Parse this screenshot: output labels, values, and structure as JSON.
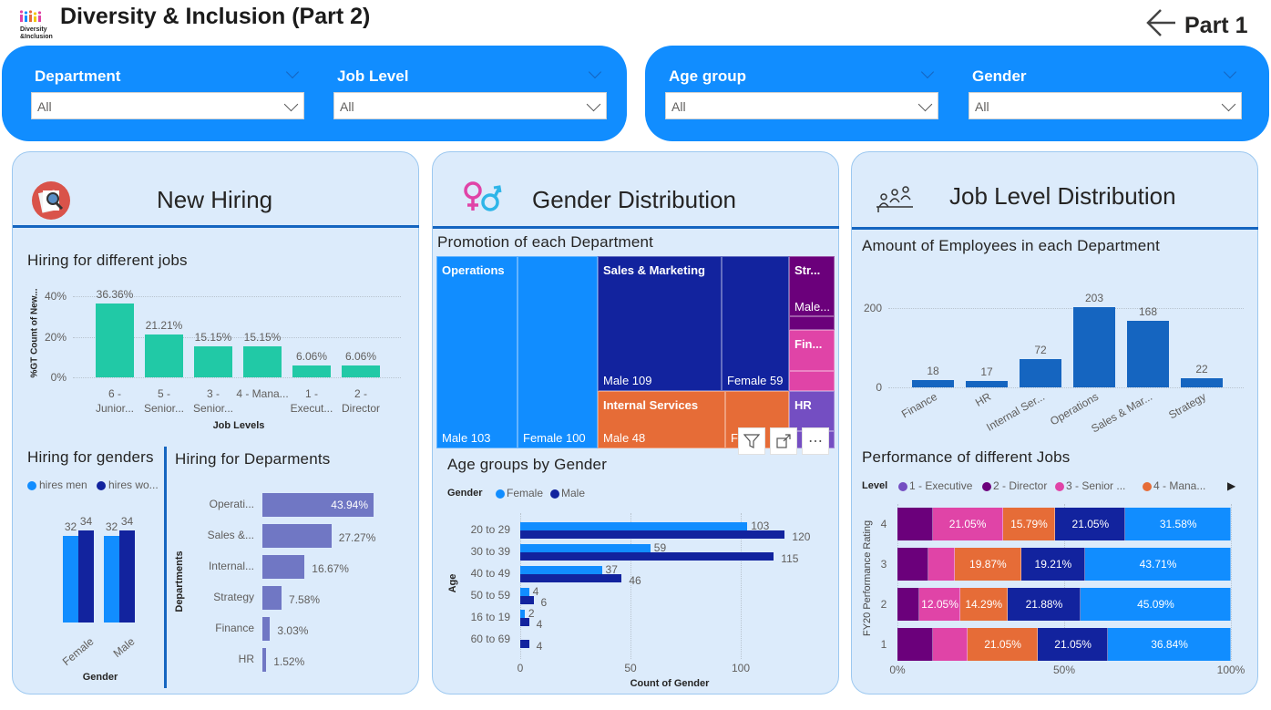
{
  "header": {
    "title": "Diversity & Inclusion (Part 2)",
    "logo_text": "Diversity & Inclusion",
    "back_label": "Part 1"
  },
  "filters": [
    {
      "label": "Department",
      "value": "All"
    },
    {
      "label": "Job Level",
      "value": "All"
    },
    {
      "label": "Age group",
      "value": "All"
    },
    {
      "label": "Gender",
      "value": "All"
    }
  ],
  "panels": {
    "hiring": {
      "title": "New Hiring"
    },
    "gender": {
      "title": "Gender Distribution"
    },
    "job": {
      "title": "Job Level Distribution"
    }
  },
  "colors": {
    "accent": "#118DFF",
    "panel_bg": "#DCEBFB",
    "teal": "#21C9A6",
    "lavender": "#7077C4",
    "light_blue": "#118DFF",
    "navy": "#12239E",
    "orange": "#E66C37",
    "purple": "#6B007B",
    "pink": "#E044A7",
    "violet": "#744EC2",
    "bar_blue": "#1565C0"
  },
  "chart_data": [
    {
      "type": "bar",
      "title": "Hiring for different jobs",
      "categories": [
        "6 - Junior...",
        "5 - Senior...",
        "3 - Senior...",
        "4 - Mana...",
        "1 - Execut...",
        "2 - Director"
      ],
      "values": [
        36.36,
        21.21,
        15.15,
        15.15,
        6.06,
        6.06
      ],
      "data_labels": [
        "36.36%",
        "21.21%",
        "15.15%",
        "15.15%",
        "6.06%",
        "6.06%"
      ],
      "xlabel": "Job Levels",
      "ylabel": "%GT Count of New...",
      "yticks": [
        "0%",
        "20%",
        "40%"
      ],
      "ylim": [
        0,
        40
      ],
      "grid": true
    },
    {
      "type": "bar",
      "title": "Hiring for genders",
      "categories": [
        "Female",
        "Male"
      ],
      "series": [
        {
          "name": "hires men",
          "values": [
            32,
            32
          ],
          "color": "#118DFF"
        },
        {
          "name": "hires wo...",
          "values": [
            34,
            34
          ],
          "color": "#12239E"
        }
      ],
      "xlabel": "Gender",
      "legend": "top-left"
    },
    {
      "type": "bar",
      "orientation": "horizontal",
      "title": "Hiring for Deparments",
      "categories": [
        "Operati...",
        "Sales &...",
        "Internal...",
        "Strategy",
        "Finance",
        "HR"
      ],
      "values": [
        43.94,
        27.27,
        16.67,
        7.58,
        3.03,
        1.52
      ],
      "data_labels": [
        "43.94%",
        "27.27%",
        "16.67%",
        "7.58%",
        "3.03%",
        "1.52%"
      ],
      "ylabel": "Departments"
    },
    {
      "type": "treemap",
      "title": "Promotion of each Department",
      "groups": [
        {
          "label": "Operations",
          "color": "#118DFF",
          "children": [
            {
              "label": "Male 103",
              "value": 103
            },
            {
              "label": "Female 100",
              "value": 100
            }
          ]
        },
        {
          "label": "Sales & Marketing",
          "color": "#12239E",
          "children": [
            {
              "label": "Male 109",
              "value": 109
            },
            {
              "label": "Female 59",
              "value": 59
            }
          ]
        },
        {
          "label": "Internal Services",
          "color": "#E66C37",
          "children": [
            {
              "label": "Male 48",
              "value": 48
            },
            {
              "label": "Fe...",
              "value": 24
            }
          ]
        },
        {
          "label": "Str...",
          "color": "#6B007B",
          "children": [
            {
              "label": "Male...",
              "value": 18
            },
            {
              "label": "",
              "value": 4
            }
          ]
        },
        {
          "label": "Fin...",
          "color": "#E044A7",
          "children": [
            {
              "label": "",
              "value": 12
            },
            {
              "label": "",
              "value": 6
            }
          ]
        },
        {
          "label": "HR",
          "color": "#744EC2",
          "children": [
            {
              "label": "",
              "value": 12
            },
            {
              "label": "",
              "value": 5
            }
          ]
        }
      ]
    },
    {
      "type": "bar",
      "orientation": "horizontal",
      "title": "Age groups by Gender",
      "legend_title": "Gender",
      "categories": [
        "20 to 29",
        "30 to 39",
        "40 to 49",
        "50 to 59",
        "16 to 19",
        "60 to 69"
      ],
      "series": [
        {
          "name": "Female",
          "values": [
            103,
            59,
            37,
            4,
            2,
            null
          ],
          "color": "#118DFF"
        },
        {
          "name": "Male",
          "values": [
            120,
            115,
            46,
            6,
            4,
            4
          ],
          "color": "#12239E"
        }
      ],
      "xlabel": "Count of Gender",
      "ylabel": "Age",
      "xticks": [
        0,
        50,
        100
      ],
      "grid": true
    },
    {
      "type": "bar",
      "title": "Amount of Employees in each Department",
      "categories": [
        "Finance",
        "HR",
        "Internal Ser...",
        "Operations",
        "Sales & Mar...",
        "Strategy"
      ],
      "values": [
        18,
        17,
        72,
        203,
        168,
        22
      ],
      "yticks": [
        0,
        200
      ],
      "grid": true
    },
    {
      "type": "bar",
      "orientation": "horizontal",
      "stacked": "100%",
      "title": "Performance of different Jobs",
      "legend_title": "Level",
      "categories": [
        "4",
        "3",
        "2",
        "1"
      ],
      "series": [
        {
          "name": "1 - Executive",
          "color": "#744EC2",
          "values": [
            0,
            0,
            0,
            0
          ]
        },
        {
          "name": "2 - Director",
          "color": "#6B007B",
          "values": [
            10.53,
            9.27,
            6.69,
            10.53
          ]
        },
        {
          "name": "3 - Senior ...",
          "color": "#E044A7",
          "values": [
            21.05,
            7.95,
            12.05,
            10.53
          ]
        },
        {
          "name": "4 - Mana...",
          "color": "#E66C37",
          "values": [
            15.79,
            19.87,
            14.29,
            21.05
          ]
        },
        {
          "color": "#12239E",
          "values": [
            21.05,
            19.21,
            21.88,
            21.05
          ]
        },
        {
          "color": "#118DFF",
          "values": [
            31.58,
            43.71,
            45.09,
            36.84
          ]
        }
      ],
      "ylabel": "FY20 Performance Rating",
      "xticks": [
        "0%",
        "50%",
        "100%"
      ]
    }
  ]
}
